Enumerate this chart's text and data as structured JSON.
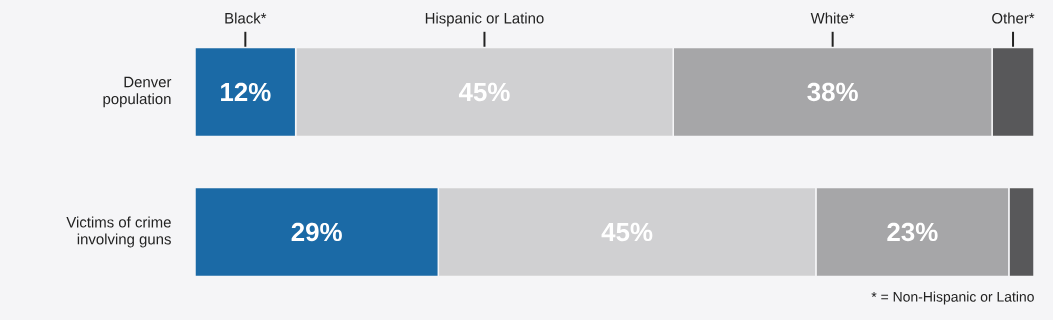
{
  "chart_data": {
    "type": "bar",
    "orientation": "horizontal",
    "stacked": true,
    "categories": [
      "Denver population",
      "Victims of crime involving guns"
    ],
    "series": [
      {
        "name": "Black*",
        "color": "#1b6aa6",
        "values": [
          12,
          29
        ],
        "value_labels": [
          "12%",
          "29%"
        ]
      },
      {
        "name": "Hispanic or Latino",
        "color": "#d0d0d2",
        "values": [
          45,
          45
        ],
        "value_labels": [
          "45%",
          "45%"
        ]
      },
      {
        "name": "White*",
        "color": "#a6a6a8",
        "values": [
          38,
          23
        ],
        "value_labels": [
          "38%",
          "23%"
        ]
      },
      {
        "name": "Other*",
        "color": "#58585a",
        "values": [
          5,
          3
        ],
        "value_labels": [
          null,
          null
        ]
      }
    ],
    "annotations": [
      "* = Non-Hispanic or Latino"
    ]
  }
}
